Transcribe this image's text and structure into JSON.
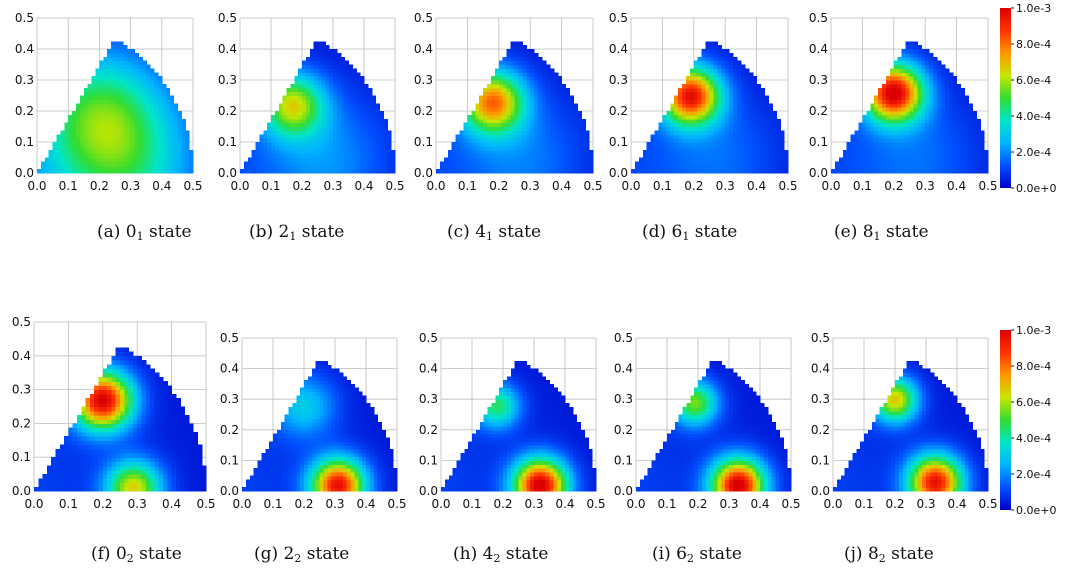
{
  "colorbar": {
    "labels": [
      "1.0e-3",
      "8.0e-4",
      "6.0e-4",
      "4.0e-4",
      "2.0e-4",
      "0.0e+0"
    ],
    "min": 0.0,
    "max": 0.001
  },
  "colors": {
    "scale": [
      "#0000c8",
      "#0050ff",
      "#00b4ff",
      "#00e6c8",
      "#32dc32",
      "#c8e600",
      "#ff9600",
      "#ff3200",
      "#dc0000"
    ]
  },
  "axis_ticks": {
    "x": [
      "0.0",
      "0.1",
      "0.2",
      "0.3",
      "0.4",
      "0.5"
    ],
    "y": [
      "0.0",
      "0.1",
      "0.2",
      "0.3",
      "0.4",
      "0.5"
    ]
  },
  "chart_data": [
    {
      "type": "heatmap",
      "panel": "a",
      "caption": {
        "prefix": "(a) 0",
        "sub": "1",
        "suffix": " state"
      },
      "xlim": [
        0,
        0.5
      ],
      "ylim": [
        0,
        0.5
      ],
      "grid": true,
      "peaks": [
        {
          "x": 0.2,
          "y": 0.2,
          "value": 0.00035,
          "sigma": 0.14
        },
        {
          "x": 0.28,
          "y": 0.02,
          "value": 0.0003,
          "sigma": 0.16
        }
      ],
      "base": 0.00012
    },
    {
      "type": "heatmap",
      "panel": "b",
      "caption": {
        "prefix": "(b) 2",
        "sub": "1",
        "suffix": " state"
      },
      "xlim": [
        0,
        0.5
      ],
      "ylim": [
        0,
        0.5
      ],
      "grid": true,
      "peaks": [
        {
          "x": 0.17,
          "y": 0.22,
          "value": 0.00055,
          "sigma": 0.07
        },
        {
          "x": 0.28,
          "y": 0.05,
          "value": 0.00015,
          "sigma": 0.14
        }
      ],
      "base": 0.0001
    },
    {
      "type": "heatmap",
      "panel": "c",
      "caption": {
        "prefix": "(c) 4",
        "sub": "1",
        "suffix": " state"
      },
      "xlim": [
        0,
        0.5
      ],
      "ylim": [
        0,
        0.5
      ],
      "grid": true,
      "peaks": [
        {
          "x": 0.18,
          "y": 0.23,
          "value": 0.00072,
          "sigma": 0.07
        },
        {
          "x": 0.28,
          "y": 0.05,
          "value": 0.00012,
          "sigma": 0.14
        }
      ],
      "base": 0.0001
    },
    {
      "type": "heatmap",
      "panel": "d",
      "caption": {
        "prefix": "(d) 6",
        "sub": "1",
        "suffix": " state"
      },
      "xlim": [
        0,
        0.5
      ],
      "ylim": [
        0,
        0.5
      ],
      "grid": true,
      "peaks": [
        {
          "x": 0.19,
          "y": 0.25,
          "value": 0.00088,
          "sigma": 0.065
        },
        {
          "x": 0.28,
          "y": 0.05,
          "value": 0.0001,
          "sigma": 0.14
        }
      ],
      "base": 0.0001
    },
    {
      "type": "heatmap",
      "panel": "e",
      "caption": {
        "prefix": "(e) 8",
        "sub": "1",
        "suffix": " state"
      },
      "xlim": [
        0,
        0.5
      ],
      "ylim": [
        0,
        0.5
      ],
      "grid": true,
      "peaks": [
        {
          "x": 0.2,
          "y": 0.26,
          "value": 0.00095,
          "sigma": 0.065
        },
        {
          "x": 0.28,
          "y": 0.05,
          "value": 0.0001,
          "sigma": 0.14
        }
      ],
      "base": 0.0001
    },
    {
      "type": "heatmap",
      "panel": "f",
      "caption": {
        "prefix": "(f) 0",
        "sub": "2",
        "suffix": " state"
      },
      "xlim": [
        0,
        0.5
      ],
      "ylim": [
        0,
        0.5
      ],
      "grid": true,
      "peaks": [
        {
          "x": 0.2,
          "y": 0.27,
          "value": 0.00095,
          "sigma": 0.06
        },
        {
          "x": 0.29,
          "y": 0.01,
          "value": 0.0006,
          "sigma": 0.055
        }
      ],
      "base": 0.0001
    },
    {
      "type": "heatmap",
      "panel": "g",
      "caption": {
        "prefix": "(g) 2",
        "sub": "2",
        "suffix": " state"
      },
      "xlim": [
        0,
        0.5
      ],
      "ylim": [
        0,
        0.5
      ],
      "grid": true,
      "peaks": [
        {
          "x": 0.2,
          "y": 0.28,
          "value": 0.00025,
          "sigma": 0.07
        },
        {
          "x": 0.31,
          "y": 0.02,
          "value": 0.0009,
          "sigma": 0.06
        }
      ],
      "base": 0.0001
    },
    {
      "type": "heatmap",
      "panel": "h",
      "caption": {
        "prefix": "(h) 4",
        "sub": "2",
        "suffix": " state"
      },
      "xlim": [
        0,
        0.5
      ],
      "ylim": [
        0,
        0.5
      ],
      "grid": true,
      "peaks": [
        {
          "x": 0.18,
          "y": 0.28,
          "value": 0.0004,
          "sigma": 0.05
        },
        {
          "x": 0.32,
          "y": 0.02,
          "value": 0.00097,
          "sigma": 0.06
        }
      ],
      "base": 0.0001
    },
    {
      "type": "heatmap",
      "panel": "i",
      "caption": {
        "prefix": "(i) 6",
        "sub": "2",
        "suffix": " state"
      },
      "xlim": [
        0,
        0.5
      ],
      "ylim": [
        0,
        0.5
      ],
      "grid": true,
      "peaks": [
        {
          "x": 0.19,
          "y": 0.29,
          "value": 0.0005,
          "sigma": 0.05
        },
        {
          "x": 0.33,
          "y": 0.02,
          "value": 0.00097,
          "sigma": 0.06
        }
      ],
      "base": 0.0001
    },
    {
      "type": "heatmap",
      "panel": "j",
      "caption": {
        "prefix": "(j) 8",
        "sub": "2",
        "suffix": " state"
      },
      "xlim": [
        0,
        0.5
      ],
      "ylim": [
        0,
        0.5
      ],
      "grid": true,
      "peaks": [
        {
          "x": 0.2,
          "y": 0.3,
          "value": 0.00062,
          "sigma": 0.05
        },
        {
          "x": 0.33,
          "y": 0.03,
          "value": 0.0009,
          "sigma": 0.06
        }
      ],
      "base": 0.0001
    }
  ]
}
